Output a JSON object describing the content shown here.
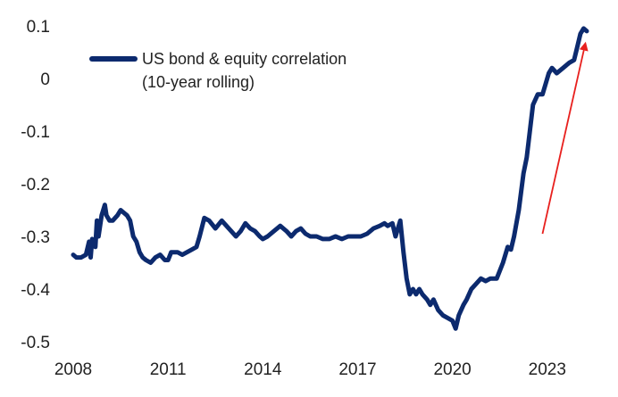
{
  "chart_data": {
    "type": "line",
    "title": "",
    "xlabel": "",
    "ylabel": "",
    "xlim": [
      2008,
      2024.25
    ],
    "ylim": [
      -0.5,
      0.1
    ],
    "x_ticks": [
      2008,
      2011,
      2014,
      2017,
      2020,
      2023
    ],
    "y_ticks": [
      0.1,
      0,
      -0.1,
      -0.2,
      -0.3,
      -0.4,
      -0.5
    ],
    "grid": false,
    "legend_position": "top-left",
    "series": [
      {
        "name": "US bond & equity correlation\n(10-year rolling)",
        "color": "#0c2a6e",
        "x": [
          2008.0,
          2008.1,
          2008.25,
          2008.4,
          2008.5,
          2008.55,
          2008.6,
          2008.7,
          2008.75,
          2008.8,
          2008.9,
          2009.0,
          2009.05,
          2009.15,
          2009.25,
          2009.4,
          2009.5,
          2009.7,
          2009.8,
          2009.9,
          2010.0,
          2010.1,
          2010.2,
          2010.3,
          2010.45,
          2010.6,
          2010.75,
          2010.9,
          2011.0,
          2011.1,
          2011.3,
          2011.45,
          2011.6,
          2011.75,
          2011.9,
          2012.0,
          2012.15,
          2012.3,
          2012.5,
          2012.7,
          2012.85,
          2013.0,
          2013.15,
          2013.3,
          2013.45,
          2013.6,
          2013.75,
          2013.9,
          2014.0,
          2014.15,
          2014.35,
          2014.55,
          2014.75,
          2014.9,
          2015.05,
          2015.2,
          2015.35,
          2015.5,
          2015.7,
          2015.9,
          2016.1,
          2016.3,
          2016.5,
          2016.7,
          2016.9,
          2017.1,
          2017.3,
          2017.5,
          2017.7,
          2017.85,
          2017.95,
          2018.1,
          2018.2,
          2018.35,
          2018.45,
          2018.55,
          2018.65,
          2018.75,
          2018.85,
          2018.95,
          2019.05,
          2019.2,
          2019.3,
          2019.4,
          2019.55,
          2019.7,
          2019.85,
          2020.0,
          2020.1,
          2020.2,
          2020.35,
          2020.45,
          2020.6,
          2020.75,
          2020.9,
          2021.05,
          2021.2,
          2021.4,
          2021.6,
          2021.75,
          2021.85,
          2021.95,
          2022.1,
          2022.25,
          2022.35,
          2022.45,
          2022.55,
          2022.7,
          2022.85,
          2022.95,
          2023.05,
          2023.15,
          2023.3,
          2023.5,
          2023.7,
          2023.85,
          2023.95,
          2024.05,
          2024.15,
          2024.25
        ],
        "values": [
          -0.335,
          -0.34,
          -0.34,
          -0.335,
          -0.31,
          -0.34,
          -0.305,
          -0.32,
          -0.27,
          -0.3,
          -0.26,
          -0.24,
          -0.26,
          -0.27,
          -0.27,
          -0.26,
          -0.25,
          -0.26,
          -0.27,
          -0.3,
          -0.31,
          -0.33,
          -0.34,
          -0.345,
          -0.35,
          -0.34,
          -0.335,
          -0.345,
          -0.345,
          -0.33,
          -0.33,
          -0.335,
          -0.33,
          -0.325,
          -0.32,
          -0.3,
          -0.265,
          -0.27,
          -0.285,
          -0.27,
          -0.28,
          -0.29,
          -0.3,
          -0.29,
          -0.275,
          -0.285,
          -0.29,
          -0.3,
          -0.305,
          -0.3,
          -0.29,
          -0.28,
          -0.29,
          -0.3,
          -0.29,
          -0.285,
          -0.295,
          -0.3,
          -0.3,
          -0.305,
          -0.305,
          -0.3,
          -0.305,
          -0.3,
          -0.3,
          -0.3,
          -0.295,
          -0.285,
          -0.28,
          -0.275,
          -0.28,
          -0.275,
          -0.3,
          -0.27,
          -0.33,
          -0.38,
          -0.41,
          -0.4,
          -0.41,
          -0.4,
          -0.41,
          -0.42,
          -0.43,
          -0.42,
          -0.44,
          -0.45,
          -0.455,
          -0.46,
          -0.475,
          -0.45,
          -0.43,
          -0.42,
          -0.4,
          -0.39,
          -0.38,
          -0.385,
          -0.38,
          -0.38,
          -0.35,
          -0.32,
          -0.325,
          -0.3,
          -0.25,
          -0.18,
          -0.15,
          -0.1,
          -0.05,
          -0.03,
          -0.03,
          -0.01,
          0.01,
          0.02,
          0.01,
          0.02,
          0.03,
          0.035,
          0.06,
          0.085,
          0.095,
          0.09
        ]
      }
    ],
    "annotations": [
      {
        "type": "arrow",
        "color": "#e8201e",
        "from": [
          2022.85,
          -0.295
        ],
        "to": [
          2024.2,
          0.065
        ]
      }
    ]
  }
}
